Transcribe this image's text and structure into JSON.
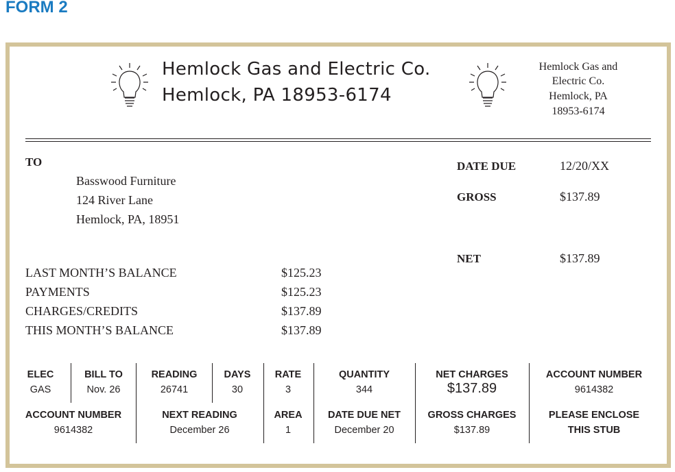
{
  "form_title": "FORM 2",
  "header": {
    "company_line1": "Hemlock Gas and Electric Co.",
    "company_line2": "Hemlock, PA 18953-6174",
    "address_lines": [
      "Hemlock Gas and",
      "Electric Co.",
      "Hemlock, PA",
      "18953-6174"
    ],
    "logo_icon": "light-bulb-icon"
  },
  "to": {
    "label": "TO",
    "lines": [
      "Basswood Furniture",
      "124 River Lane",
      "Hemlock, PA, 18951"
    ]
  },
  "summary": {
    "date_due_label": "DATE DUE",
    "date_due": "12/20/XX",
    "gross_label": "GROSS",
    "gross": "$137.89",
    "net_label": "NET",
    "net": "$137.89"
  },
  "balances": [
    {
      "label": "LAST MONTH’S BALANCE",
      "value": "$125.23"
    },
    {
      "label": "PAYMENTS",
      "value": "$125.23"
    },
    {
      "label": "CHARGES/CREDITS",
      "value": "$137.89"
    },
    {
      "label": "THIS MONTH’S BALANCE",
      "value": "$137.89"
    }
  ],
  "stub": {
    "row1": [
      {
        "label": "ELEC",
        "value": "GAS"
      },
      {
        "label": "BILL TO",
        "value": "Nov. 26"
      },
      {
        "label": "READING",
        "value": "26741"
      },
      {
        "label": "DAYS",
        "value": "30"
      },
      {
        "label": "RATE",
        "value": "3"
      },
      {
        "label": "QUANTITY",
        "value": "344"
      },
      {
        "label": "NET CHARGES",
        "value": "$137.89"
      },
      {
        "label": "ACCOUNT NUMBER",
        "value": "9614382"
      }
    ],
    "row2": [
      {
        "label": "ACCOUNT NUMBER",
        "value": "9614382"
      },
      {
        "label": "NEXT READING",
        "value": "December 26"
      },
      {
        "label": "AREA",
        "value": "1"
      },
      {
        "label": "DATE DUE NET",
        "value": "December 20"
      },
      {
        "label": "GROSS CHARGES",
        "value": "$137.89"
      },
      {
        "label": "PLEASE ENCLOSE",
        "value": "THIS STUB"
      }
    ]
  }
}
